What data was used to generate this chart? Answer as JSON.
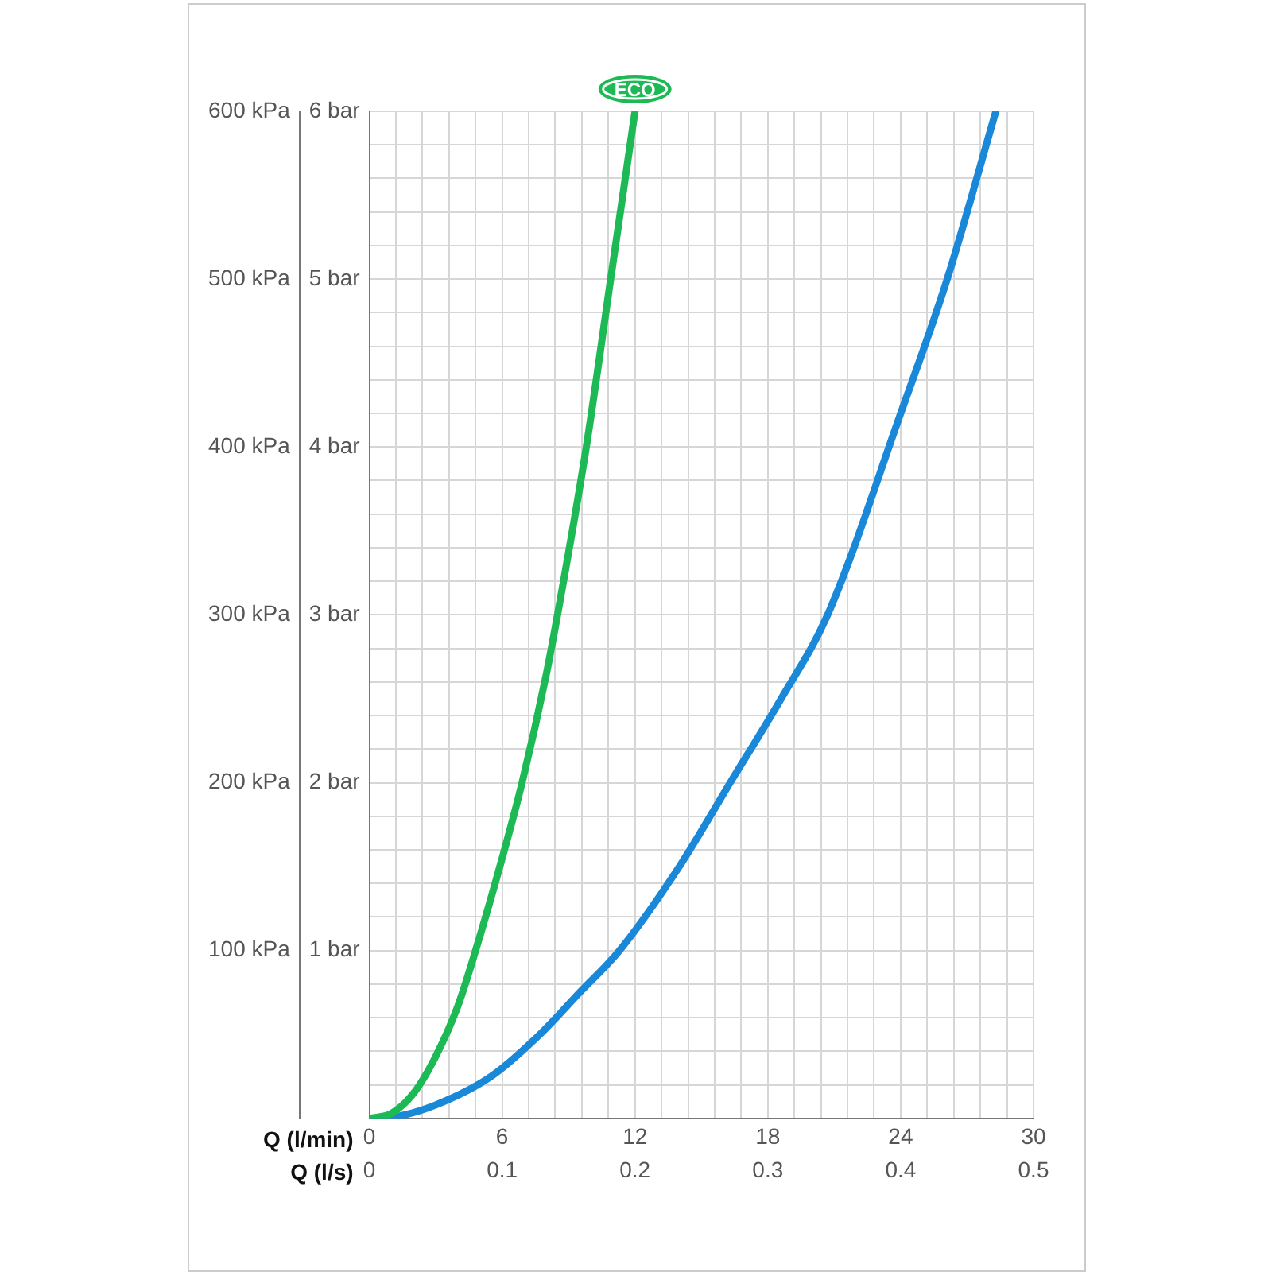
{
  "chart_data": {
    "type": "line",
    "xlabel": "Q (l/min)",
    "x2label": "Q (l/s)",
    "xlim": [
      0,
      30
    ],
    "xticks": [
      0,
      {
        "value": 1.2,
        "label": null
      },
      {
        "value": 2.4,
        "label": null
      },
      {
        "value": 3.6,
        "label": null
      },
      {
        "value": 4.8,
        "label": null
      },
      6,
      {
        "value": 7.2,
        "label": null
      },
      {
        "value": 8.4,
        "label": null
      },
      {
        "value": 9.6,
        "label": null
      },
      {
        "value": 10.8,
        "label": null
      },
      12,
      {
        "value": 13.2,
        "label": null
      },
      {
        "value": 14.4,
        "label": null
      },
      {
        "value": 15.6,
        "label": null
      },
      {
        "value": 16.8,
        "label": null
      },
      18,
      {
        "value": 19.2,
        "label": null
      },
      {
        "value": 20.4,
        "label": null
      },
      {
        "value": 21.6,
        "label": null
      },
      {
        "value": 22.8,
        "label": null
      },
      24,
      {
        "value": 25.2,
        "label": null
      },
      {
        "value": 26.4,
        "label": null
      },
      {
        "value": 27.6,
        "label": null
      },
      {
        "value": 28.8,
        "label": null
      },
      30
    ],
    "x2lim": [
      0,
      0.5
    ],
    "x2ticks": [
      0,
      0.1,
      0.2,
      0.3,
      0.4,
      0.5
    ],
    "ylim": [
      0,
      600
    ],
    "yticks": [
      {
        "value": 0,
        "label": null
      },
      {
        "value": 20,
        "label": null
      },
      {
        "value": 40,
        "label": null
      },
      {
        "value": 60,
        "label": null
      },
      {
        "value": 80,
        "label": null
      },
      {
        "value": 100,
        "label": "100 kPa"
      },
      {
        "value": 120,
        "label": null
      },
      {
        "value": 140,
        "label": null
      },
      {
        "value": 160,
        "label": null
      },
      {
        "value": 180,
        "label": null
      },
      {
        "value": 200,
        "label": "200 kPa"
      },
      {
        "value": 220,
        "label": null
      },
      {
        "value": 240,
        "label": null
      },
      {
        "value": 260,
        "label": null
      },
      {
        "value": 280,
        "label": null
      },
      {
        "value": 300,
        "label": "300 kPa"
      },
      {
        "value": 320,
        "label": null
      },
      {
        "value": 340,
        "label": null
      },
      {
        "value": 360,
        "label": null
      },
      {
        "value": 380,
        "label": null
      },
      {
        "value": 400,
        "label": "400 kPa"
      },
      {
        "value": 420,
        "label": null
      },
      {
        "value": 440,
        "label": null
      },
      {
        "value": 460,
        "label": null
      },
      {
        "value": 480,
        "label": null
      },
      {
        "value": 500,
        "label": "500 kPa"
      },
      {
        "value": 520,
        "label": null
      },
      {
        "value": 540,
        "label": null
      },
      {
        "value": 560,
        "label": null
      },
      {
        "value": 580,
        "label": null
      },
      {
        "value": 600,
        "label": "600 kPa"
      }
    ],
    "y2lim": [
      0,
      6
    ],
    "y2ticks": [
      {
        "value": 1,
        "label": "1 bar"
      },
      {
        "value": 2,
        "label": "2 bar"
      },
      {
        "value": 3,
        "label": "3 bar"
      },
      {
        "value": 4,
        "label": "4 bar"
      },
      {
        "value": 5,
        "label": "5 bar"
      },
      {
        "value": 6,
        "label": "6 bar"
      }
    ],
    "grid": true,
    "legend": false,
    "marker": "none",
    "line_style": "solid",
    "series": [
      {
        "name": "ECO",
        "color": "#1db954",
        "x": [
          0,
          1,
          2,
          3,
          4,
          4.8,
          6,
          6.9,
          8,
          8.5,
          9.8,
          10.9,
          12
        ],
        "values": [
          0,
          3,
          15,
          37,
          67,
          100,
          155,
          200,
          265,
          300,
          400,
          500,
          600
        ]
      },
      {
        "color": "#1a88d8",
        "x": [
          0,
          1.2,
          3,
          5.5,
          7.7,
          9.5,
          11.3,
          14,
          16.3,
          18.6,
          20.7,
          24,
          26.1,
          28.3
        ],
        "values": [
          0,
          1,
          8,
          25,
          50,
          75,
          100,
          150,
          200,
          250,
          300,
          420,
          500,
          600
        ]
      }
    ]
  }
}
